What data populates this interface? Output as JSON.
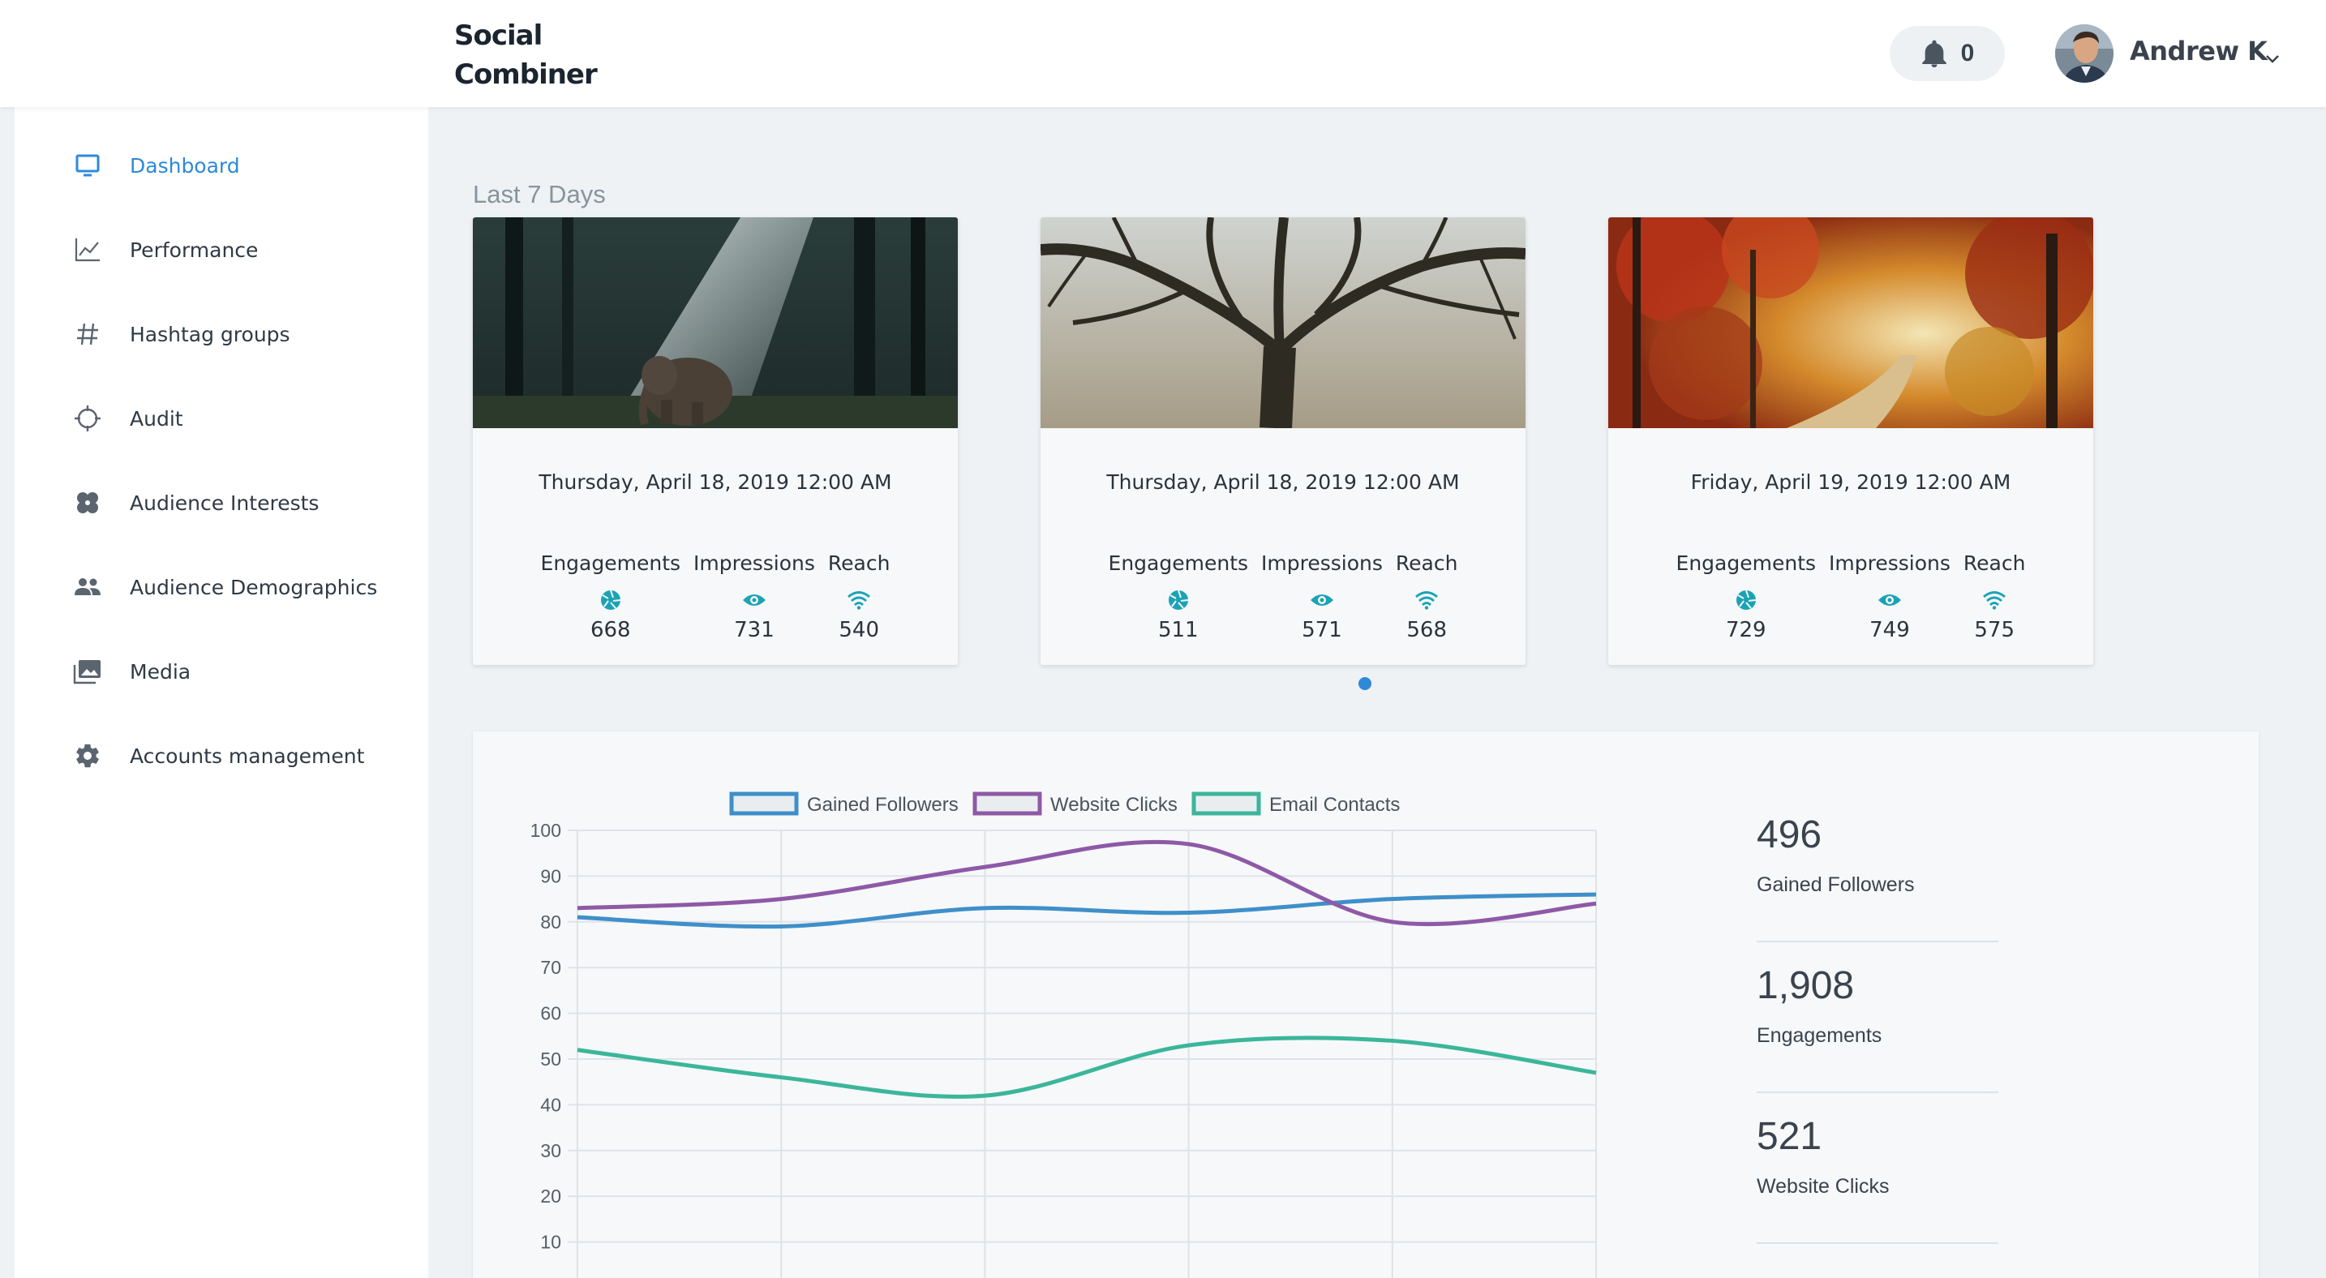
{
  "brand": {
    "line1": "Social",
    "line2": "Combiner"
  },
  "header": {
    "notification_count": "0",
    "user_name": "Andrew K"
  },
  "sidebar": {
    "items": [
      {
        "label": "Dashboard",
        "icon": "monitor-icon",
        "active": true
      },
      {
        "label": "Performance",
        "icon": "line-chart-icon"
      },
      {
        "label": "Hashtag groups",
        "icon": "hashtag-icon"
      },
      {
        "label": "Audit",
        "icon": "crosshair-icon"
      },
      {
        "label": "Audience Interests",
        "icon": "clover-icon"
      },
      {
        "label": "Audience Demographics",
        "icon": "people-icon"
      },
      {
        "label": "Media",
        "icon": "photo-library-icon"
      },
      {
        "label": "Accounts management",
        "icon": "gear-icon"
      }
    ]
  },
  "main": {
    "section_title": "Last 7 Days",
    "metric_labels": {
      "engagements": "Engagements",
      "impressions": "Impressions",
      "reach": "Reach"
    },
    "cards": [
      {
        "image": "forest-elephant-photo",
        "date": "Thursday, April 18, 2019 12:00 AM",
        "engagements": "668",
        "impressions": "731",
        "reach": "540"
      },
      {
        "image": "bare-tree-photo",
        "date": "Thursday, April 18, 2019 12:00 AM",
        "engagements": "511",
        "impressions": "571",
        "reach": "568"
      },
      {
        "image": "autumn-forest-path-photo",
        "date": "Friday, April 19, 2019 12:00 AM",
        "engagements": "729",
        "impressions": "749",
        "reach": "575"
      }
    ],
    "stats": [
      {
        "value": "496",
        "label": "Gained Followers"
      },
      {
        "value": "1,908",
        "label": "Engagements"
      },
      {
        "value": "521",
        "label": "Website Clicks"
      }
    ]
  },
  "colors": {
    "accent": "#2f89d9",
    "teal": "#1aa3b5",
    "series_blue": "#3f8fc9",
    "series_purple": "#8e59a6",
    "series_green": "#3bb69a"
  },
  "chart_data": {
    "type": "line",
    "title": "",
    "xlabel": "",
    "ylabel": "",
    "x": [
      1,
      2,
      3,
      4,
      5,
      6
    ],
    "ylim": [
      0,
      100
    ],
    "yticks": [
      10,
      20,
      30,
      40,
      50,
      60,
      70,
      80,
      90,
      100
    ],
    "grid": true,
    "legend": "top",
    "series": [
      {
        "name": "Gained Followers",
        "values": [
          81,
          79,
          83,
          82,
          85,
          86
        ],
        "color": "#3f8fc9"
      },
      {
        "name": "Website Clicks",
        "values": [
          83,
          85,
          92,
          97,
          80,
          84
        ],
        "color": "#8e59a6"
      },
      {
        "name": "Email Contacts",
        "values": [
          52,
          46,
          42,
          53,
          54,
          47
        ],
        "color": "#3bb69a"
      }
    ]
  }
}
